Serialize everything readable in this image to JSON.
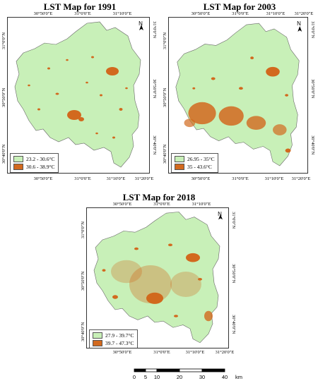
{
  "maps": [
    {
      "title": "LST Map for 1991",
      "top_ticks": [
        "30°50'0\"E",
        "31°0'0\"E",
        "31°10'0\"E"
      ],
      "bottom_ticks": [
        "30°50'0\"E",
        "31°0'0\"E",
        "31°10'0\"E",
        "31°20'0\"E"
      ],
      "left_ticks": [
        "31°0'0\"N",
        "30°50'0\"N",
        "30°40'0\"N"
      ],
      "right_ticks": [
        "31°0'0\"N",
        "30°50'0\"N",
        "30°40'0\"N"
      ],
      "legend": [
        {
          "label": "23.2 - 30.6°C",
          "color": "#c8f0b8"
        },
        {
          "label": "30.6 - 38.9°C",
          "color": "#d2691e"
        }
      ]
    },
    {
      "title": "LST Map for 2003",
      "top_ticks": [
        "30°50'0\"E",
        "31°0'0\"E",
        "31°10'0\"E",
        "31°20'0\"E"
      ],
      "bottom_ticks": [
        "30°50'0\"E",
        "31°0'0\"E",
        "31°10'0\"E",
        "31°20'0\"E"
      ],
      "left_ticks": [
        "31°0'0\"N",
        "30°50'0\"N",
        "30°40'0\"N"
      ],
      "right_ticks": [
        "31°0'0\"N",
        "30°50'0\"N",
        "30°40'0\"N"
      ],
      "legend": [
        {
          "label": "26.95 - 35°C",
          "color": "#c8f0b8"
        },
        {
          "label": "35 - 43.6°C",
          "color": "#d2691e"
        }
      ]
    },
    {
      "title": "LST Map for 2018",
      "top_ticks": [
        "30°50'0\"E",
        "31°0'0\"E",
        "31°10'0\"E"
      ],
      "bottom_ticks": [
        "30°50'0\"E",
        "31°0'0\"E",
        "31°10'0\"E",
        "31°20'0\"E"
      ],
      "left_ticks": [
        "31°0'0\"N",
        "30°50'0\"N",
        "30°40'0\"N"
      ],
      "right_ticks": [
        "31°0'0\"N",
        "30°50'0\"N",
        "30°40'0\"N"
      ],
      "legend": [
        {
          "label": "27.9 - 39.7°C",
          "color": "#c8f0b8"
        },
        {
          "label": "39.7 - 47.3°C",
          "color": "#d2691e"
        }
      ]
    }
  ],
  "north_label": "N",
  "scale": {
    "ticks": [
      "0",
      "5",
      "10",
      "20",
      "30",
      "40"
    ],
    "unit": "km",
    "stops": [
      0,
      5,
      10,
      20,
      30,
      40
    ]
  },
  "colors": {
    "low": "#c8f0b8",
    "high": "#d2691e",
    "border": "#333333"
  }
}
